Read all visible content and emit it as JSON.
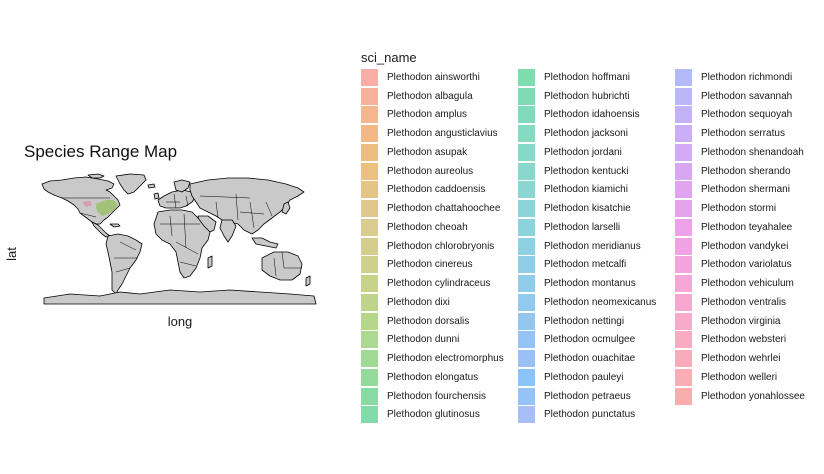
{
  "chart": {
    "title": "Species Range Map",
    "xlabel": "long",
    "ylabel": "lat",
    "legend_title": "sci_name"
  },
  "colors": {
    "land": "#c9c9c9",
    "border": "#000000",
    "range_overlay": "#8fbf4f"
  },
  "legend": {
    "placement": "right",
    "items": [
      {
        "label": "Plethodon ainsworthi",
        "color": "#F8766D"
      },
      {
        "label": "Plethodon albagula",
        "color": "#F47E5A"
      },
      {
        "label": "Plethodon amplus",
        "color": "#EF8646"
      },
      {
        "label": "Plethodon angusticlavius",
        "color": "#E98B36"
      },
      {
        "label": "Plethodon asupak",
        "color": "#E3922A"
      },
      {
        "label": "Plethodon aureolus",
        "color": "#DC982A"
      },
      {
        "label": "Plethodon caddoensis",
        "color": "#D49E33"
      },
      {
        "label": "Plethodon chattahoochee",
        "color": "#CCA33C"
      },
      {
        "label": "Plethodon cheoah",
        "color": "#C2A844"
      },
      {
        "label": "Plethodon chlorobryonis",
        "color": "#B8AC40"
      },
      {
        "label": "Plethodon cinereus",
        "color": "#ADB13E"
      },
      {
        "label": "Plethodon cylindraceus",
        "color": "#A3B43E"
      },
      {
        "label": "Plethodon dixi",
        "color": "#95B83E"
      },
      {
        "label": "Plethodon dorsalis",
        "color": "#85BB40"
      },
      {
        "label": "Plethodon dunni",
        "color": "#74BE48"
      },
      {
        "label": "Plethodon electromorphus",
        "color": "#63C052"
      },
      {
        "label": "Plethodon elongatus",
        "color": "#4EC25C"
      },
      {
        "label": "Plethodon fourchensis",
        "color": "#38C466"
      },
      {
        "label": "Plethodon glutinosus",
        "color": "#2DC470"
      },
      {
        "label": "Plethodon hoffmani",
        "color": "#29C47A"
      },
      {
        "label": "Plethodon hubrichti",
        "color": "#2BC384"
      },
      {
        "label": "Plethodon idahoensis",
        "color": "#2FC28F"
      },
      {
        "label": "Plethodon jacksoni",
        "color": "#33C199"
      },
      {
        "label": "Plethodon jordani",
        "color": "#36BFA3"
      },
      {
        "label": "Plethodon kentucki",
        "color": "#3ABDAC"
      },
      {
        "label": "Plethodon kiamichi",
        "color": "#3DBBB5"
      },
      {
        "label": "Plethodon kisatchie",
        "color": "#3FB8BE"
      },
      {
        "label": "Plethodon larselli",
        "color": "#41B5C6"
      },
      {
        "label": "Plethodon meridianus",
        "color": "#43B2CE"
      },
      {
        "label": "Plethodon metcalfi",
        "color": "#45AED5"
      },
      {
        "label": "Plethodon montanus",
        "color": "#46AADC"
      },
      {
        "label": "Plethodon neomexicanus",
        "color": "#48A6E2"
      },
      {
        "label": "Plethodon nettingi",
        "color": "#4AA1E8"
      },
      {
        "label": "Plethodon ocmulgee",
        "color": "#4F9CEC"
      },
      {
        "label": "Plethodon ouachitae",
        "color": "#5896F0"
      },
      {
        "label": "Plethodon pauleyi",
        "color": "#3D9DF5"
      },
      {
        "label": "Plethodon petraeus",
        "color": "#4F9BF2"
      },
      {
        "label": "Plethodon punctatus",
        "color": "#6E93F0"
      },
      {
        "label": "Plethodon richmondi",
        "color": "#7F8CF6"
      },
      {
        "label": "Plethodon savannah",
        "color": "#8C86F2"
      },
      {
        "label": "Plethodon sequoyah",
        "color": "#9A7FF2"
      },
      {
        "label": "Plethodon serratus",
        "color": "#A878F0"
      },
      {
        "label": "Plethodon shenandoah",
        "color": "#B472EE"
      },
      {
        "label": "Plethodon sherando",
        "color": "#C06CEA"
      },
      {
        "label": "Plethodon shermani",
        "color": "#CB68E6"
      },
      {
        "label": "Plethodon stormi",
        "color": "#D564E1"
      },
      {
        "label": "Plethodon teyahalee",
        "color": "#DF63DA"
      },
      {
        "label": "Plethodon vandykei",
        "color": "#E665D1"
      },
      {
        "label": "Plethodon variolatus",
        "color": "#EC67C7"
      },
      {
        "label": "Plethodon vehiculum",
        "color": "#F06ABD"
      },
      {
        "label": "Plethodon ventralis",
        "color": "#F36DB2"
      },
      {
        "label": "Plethodon virginia",
        "color": "#F56FA6"
      },
      {
        "label": "Plethodon websteri",
        "color": "#F6719A"
      },
      {
        "label": "Plethodon wehrlei",
        "color": "#F7738E"
      },
      {
        "label": "Plethodon welleri",
        "color": "#F87482"
      },
      {
        "label": "Plethodon yonahlossee",
        "color": "#F87676"
      }
    ]
  }
}
